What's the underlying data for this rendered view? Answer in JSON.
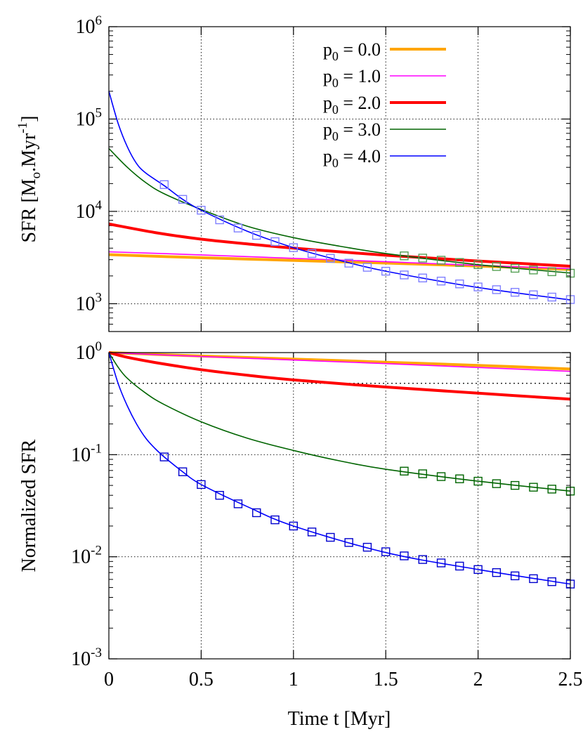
{
  "chart_data": [
    {
      "type": "line",
      "panel": "top",
      "ylabel_parts": [
        "SFR [M",
        "o",
        ".Myr",
        "-1",
        "]"
      ],
      "yscale": "log",
      "xlim": [
        0,
        2.5
      ],
      "ylim": [
        500,
        1000000
      ],
      "xticks": [
        0,
        0.5,
        1,
        1.5,
        2,
        2.5
      ],
      "yticks": [
        {
          "value": 1000,
          "base": "10",
          "exp": "3"
        },
        {
          "value": 10000,
          "base": "10",
          "exp": "4"
        },
        {
          "value": 100000,
          "base": "10",
          "exp": "5"
        },
        {
          "value": 1000000,
          "base": "10",
          "exp": "6"
        }
      ],
      "grid": true,
      "legend_position": "top-right",
      "series": [
        {
          "name_base": "p",
          "name_sub": "0",
          "name_rest": " = 0.0",
          "color": "#ffa500",
          "width": 4,
          "x": [
            0,
            0.5,
            1,
            1.5,
            2,
            2.5
          ],
          "y": [
            3400,
            3150,
            2950,
            2760,
            2560,
            2350
          ]
        },
        {
          "name_base": "p",
          "name_sub": "0",
          "name_rest": " = 1.0",
          "color": "#ff00ff",
          "width": 1.6,
          "x": [
            0,
            0.5,
            1,
            1.5,
            2,
            2.5
          ],
          "y": [
            3650,
            3380,
            3100,
            2850,
            2600,
            2400
          ]
        },
        {
          "name_base": "p",
          "name_sub": "0",
          "name_rest": " = 2.0",
          "color": "#ff0000",
          "width": 4,
          "x": [
            0,
            0.25,
            0.5,
            0.75,
            1,
            1.5,
            2,
            2.5
          ],
          "y": [
            7300,
            5900,
            5000,
            4450,
            4000,
            3350,
            2900,
            2550
          ]
        },
        {
          "name_base": "p",
          "name_sub": "0",
          "name_rest": " = 3.0",
          "color": "#006400",
          "width": 1.6,
          "x": [
            0,
            0.1,
            0.2,
            0.3,
            0.5,
            0.75,
            1,
            1.25,
            1.5,
            2,
            2.5
          ],
          "y": [
            48000,
            30000,
            20500,
            15500,
            10500,
            6900,
            5200,
            4200,
            3500,
            2650,
            2150
          ]
        },
        {
          "name_base": "p",
          "name_sub": "0",
          "name_rest": " = 4.0",
          "color": "#0000ff",
          "width": 1.6,
          "x": [
            0,
            0.05,
            0.1,
            0.15,
            0.2,
            0.3,
            0.4,
            0.5,
            0.75,
            1,
            1.25,
            1.5,
            2,
            2.5
          ],
          "y": [
            200000,
            90000,
            50000,
            33000,
            26000,
            19000,
            13500,
            10300,
            6100,
            4050,
            2950,
            2250,
            1500,
            1100
          ]
        }
      ],
      "markers": [
        {
          "color": "#8080ff",
          "x": [
            0.3,
            0.4,
            0.5,
            0.6,
            0.7,
            0.8,
            0.9,
            1.0,
            1.1,
            1.2,
            1.3,
            1.4,
            1.5,
            1.6,
            1.7,
            1.8,
            1.9,
            2.0,
            2.1,
            2.2,
            2.3,
            2.4,
            2.5
          ],
          "y": [
            19500,
            13500,
            10300,
            8100,
            6600,
            5500,
            4700,
            4050,
            3500,
            3100,
            2750,
            2480,
            2250,
            2050,
            1900,
            1760,
            1640,
            1520,
            1420,
            1330,
            1250,
            1180,
            1110
          ]
        },
        {
          "color": "#55a055",
          "x": [
            1.6,
            1.7,
            1.8,
            1.9,
            2.0,
            2.1,
            2.2,
            2.3,
            2.4,
            2.5
          ],
          "y": [
            3300,
            3120,
            2960,
            2800,
            2650,
            2530,
            2420,
            2320,
            2220,
            2140
          ]
        }
      ]
    },
    {
      "type": "line",
      "panel": "bottom",
      "ylabel": "Normalized SFR",
      "xlabel": "Time t [Myr]",
      "yscale": "log",
      "xlim": [
        0,
        2.5
      ],
      "ylim": [
        0.001,
        1
      ],
      "xticks": [
        0,
        0.5,
        1,
        1.5,
        2,
        2.5
      ],
      "xtick_labels": [
        "0",
        "0.5",
        "1",
        "1.5",
        "2",
        "2.5"
      ],
      "yticks": [
        {
          "value": 0.001,
          "base": "10",
          "exp": "-3"
        },
        {
          "value": 0.01,
          "base": "10",
          "exp": "-2"
        },
        {
          "value": 0.1,
          "base": "10",
          "exp": "-1"
        },
        {
          "value": 1,
          "base": "10",
          "exp": "0",
          "plain": true
        }
      ],
      "reference_line": 0.5,
      "grid": true,
      "series": [
        {
          "color": "#ffa500",
          "width": 4,
          "x": [
            0,
            0.5,
            1,
            1.5,
            2,
            2.5
          ],
          "y": [
            1,
            0.925,
            0.865,
            0.805,
            0.75,
            0.69
          ]
        },
        {
          "color": "#ff00ff",
          "width": 1.6,
          "x": [
            0,
            0.5,
            1,
            1.5,
            2,
            2.5
          ],
          "y": [
            1,
            0.915,
            0.845,
            0.78,
            0.715,
            0.655
          ]
        },
        {
          "color": "#ff0000",
          "width": 4,
          "x": [
            0,
            0.1,
            0.25,
            0.5,
            0.75,
            1,
            1.5,
            2,
            2.5
          ],
          "y": [
            1,
            0.9,
            0.8,
            0.68,
            0.6,
            0.54,
            0.46,
            0.4,
            0.35
          ]
        },
        {
          "color": "#006400",
          "width": 1.6,
          "x": [
            0,
            0.05,
            0.1,
            0.2,
            0.3,
            0.5,
            0.75,
            1,
            1.25,
            1.5,
            2,
            2.5
          ],
          "y": [
            1,
            0.72,
            0.56,
            0.4,
            0.31,
            0.21,
            0.145,
            0.11,
            0.087,
            0.072,
            0.055,
            0.044
          ]
        },
        {
          "color": "#0000ff",
          "width": 1.6,
          "x": [
            0,
            0.05,
            0.1,
            0.15,
            0.2,
            0.25,
            0.3,
            0.4,
            0.5,
            0.75,
            1,
            1.5,
            2,
            2.5
          ],
          "y": [
            1,
            0.5,
            0.3,
            0.2,
            0.145,
            0.115,
            0.095,
            0.068,
            0.051,
            0.031,
            0.02,
            0.011,
            0.0075,
            0.0054
          ]
        }
      ],
      "markers": [
        {
          "color": "#0000cd",
          "x": [
            0.3,
            0.4,
            0.5,
            0.6,
            0.7,
            0.8,
            0.9,
            1.0,
            1.1,
            1.2,
            1.3,
            1.4,
            1.5,
            1.6,
            1.7,
            1.8,
            1.9,
            2.0,
            2.1,
            2.2,
            2.3,
            2.4,
            2.5
          ],
          "y": [
            0.095,
            0.068,
            0.051,
            0.04,
            0.033,
            0.027,
            0.023,
            0.02,
            0.0175,
            0.0155,
            0.0138,
            0.0124,
            0.0112,
            0.0102,
            0.0094,
            0.0087,
            0.0081,
            0.0075,
            0.007,
            0.0065,
            0.0061,
            0.0057,
            0.0054
          ]
        },
        {
          "color": "#006400",
          "x": [
            1.6,
            1.7,
            1.8,
            1.9,
            2.0,
            2.1,
            2.2,
            2.3,
            2.4,
            2.5
          ],
          "y": [
            0.069,
            0.065,
            0.061,
            0.058,
            0.055,
            0.052,
            0.05,
            0.048,
            0.046,
            0.044
          ]
        }
      ]
    }
  ]
}
